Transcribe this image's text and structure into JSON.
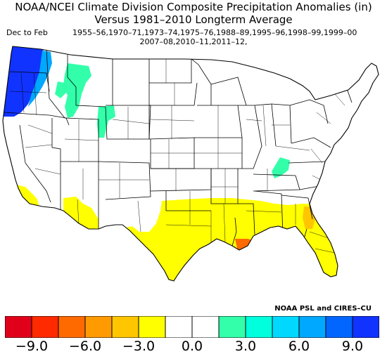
{
  "title": "NOAA/NCEI Climate Division Composite Precipitation Anomalies (in)",
  "subtitle": "Versus 1981–2010 Longterm Average",
  "season": "Dec to Feb",
  "years_line1": "1955–56,1970–71,1973–74,1975–76,1988–89,1995–96,1998–99,1999–00",
  "years_line2": "2007–08,2010–11,2011–12,",
  "credit": "NOAA PSL and CIRES–CU",
  "colorbar": {
    "colors": [
      "#e1001a",
      "#ff2a00",
      "#ff6a00",
      "#ff9a00",
      "#ffc600",
      "#ffff00",
      "#ffffff",
      "#ffffff",
      "#33ffaa",
      "#00ffdd",
      "#00d8ff",
      "#00a8ff",
      "#0066ff",
      "#1133ff"
    ],
    "tick_labels": [
      "−9.0",
      "−6.0",
      "−3.0",
      "0.0",
      "3.0",
      "6.0",
      "9.0"
    ],
    "range": [
      -10.5,
      10.5
    ]
  },
  "regions": {
    "pacific_nw_coast": {
      "category": "wet",
      "color": "#1133ff"
    },
    "pacific_nw_inland": {
      "category": "wet",
      "color": "#00a8ff"
    },
    "idaho_montana": {
      "category": "wet",
      "color": "#33ffaa"
    },
    "ohio_valley": {
      "category": "wet",
      "color": "#33ffaa"
    },
    "southern_california": {
      "category": "dry",
      "color": "#ffff00"
    },
    "arizona": {
      "category": "dry",
      "color": "#ffff00"
    },
    "texas_gulf_southeast": {
      "category": "dry",
      "color": "#ffff00"
    },
    "louisiana_coast": {
      "category": "very dry",
      "color": "#ff6a00"
    },
    "georgia_coast": {
      "category": "dry",
      "color": "#ffc600"
    }
  }
}
